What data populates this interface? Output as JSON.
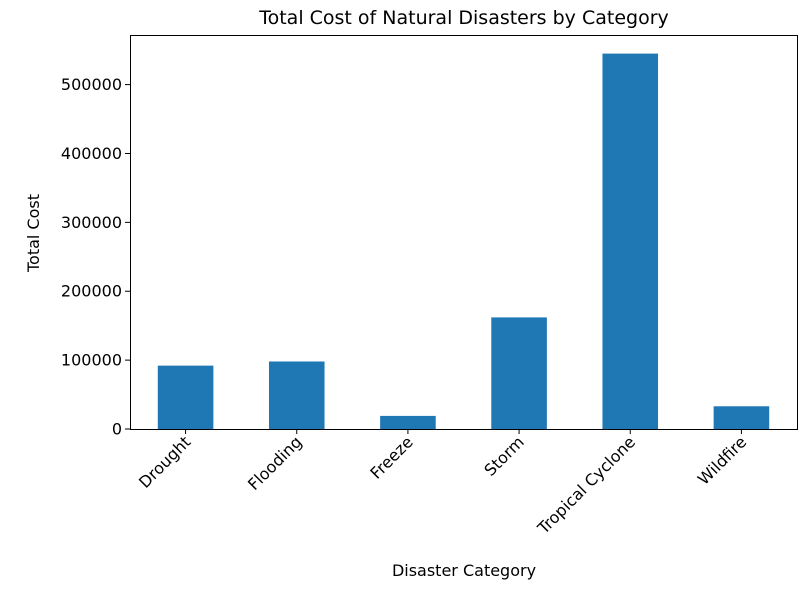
{
  "chart_data": {
    "type": "bar",
    "title": "Total Cost of Natural Disasters by Category",
    "xlabel": "Disaster Category",
    "ylabel": "Total Cost",
    "categories": [
      "Drought",
      "Flooding",
      "Freeze",
      "Storm",
      "Tropical Cyclone",
      "Wildfire"
    ],
    "values": [
      92000,
      98000,
      19000,
      162000,
      545000,
      33000
    ],
    "ylim": [
      0,
      572000
    ],
    "yticks": [
      0,
      100000,
      200000,
      300000,
      400000,
      500000
    ],
    "ytick_labels": [
      "0",
      "100000",
      "200000",
      "300000",
      "400000",
      "500000"
    ],
    "grid": false,
    "bar_color": "#1f77b4"
  }
}
